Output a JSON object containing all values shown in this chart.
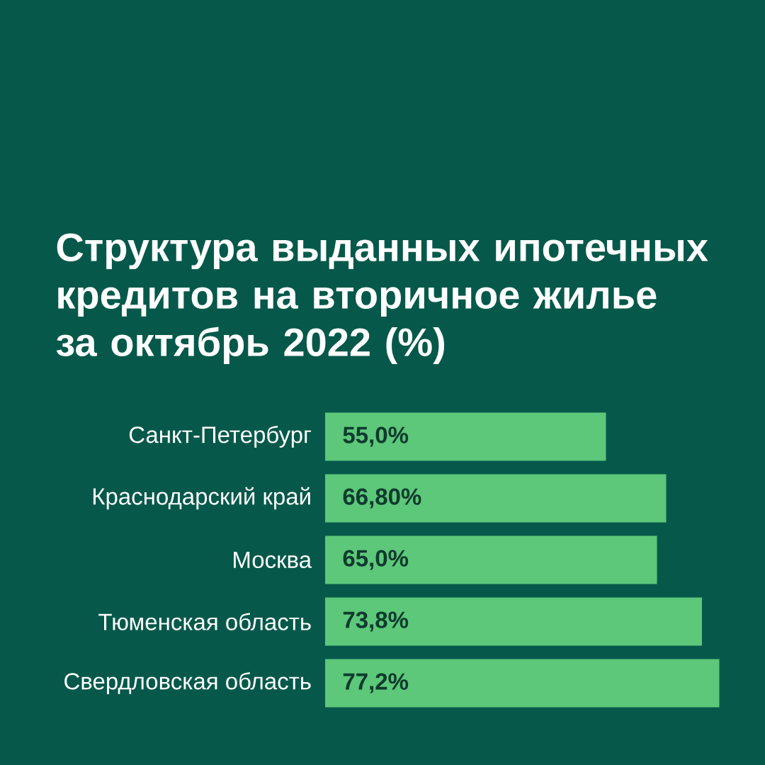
{
  "chart_data": {
    "type": "bar",
    "orientation": "horizontal",
    "title": "Структура выданных ипотечных кредитов на вторичное жилье за октябрь 2022 (%)",
    "categories": [
      "Санкт-Петербург",
      "Краснодарский край",
      "Москва",
      "Тюменская область",
      "Свердловская область"
    ],
    "values": [
      55.0,
      66.8,
      65.0,
      73.8,
      77.2
    ],
    "value_labels": [
      "55,0%",
      "66,80%",
      "65,0%",
      "73,8%",
      "77,2%"
    ],
    "color": "#5dc77a",
    "tick_labels": "y"
  }
}
